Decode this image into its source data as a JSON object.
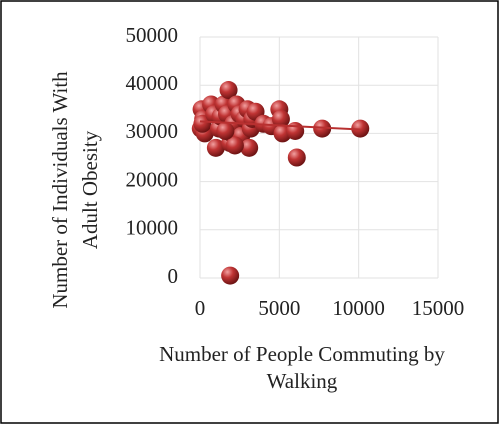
{
  "chart_data": {
    "type": "scatter",
    "x_label": [
      "Number of People Commuting by",
      "Walking"
    ],
    "y_label": [
      "Number of Individuals With",
      "Adult Obesity"
    ],
    "x": [
      100,
      200,
      50,
      300,
      150,
      700,
      900,
      1000,
      1200,
      1300,
      1500,
      1700,
      1800,
      1900,
      2000,
      2100,
      2300,
      2500,
      2600,
      2800,
      3000,
      3100,
      3200,
      3300,
      3500,
      2200,
      1600,
      4000,
      4500,
      5000,
      5100,
      5200,
      6000,
      6100,
      7700,
      10100,
      1900
    ],
    "y": [
      35000,
      33000,
      31000,
      30000,
      32000,
      36000,
      34000,
      27000,
      31000,
      33500,
      36000,
      34000,
      39000,
      28000,
      30000,
      32000,
      36000,
      34000,
      29500,
      33000,
      35000,
      27000,
      31000,
      33000,
      34500,
      27500,
      30500,
      32000,
      31500,
      35000,
      33000,
      30000,
      30500,
      25000,
      31000,
      31000,
      500
    ],
    "color": "#b83030",
    "trendline": {
      "x": [
        0,
        10100
      ],
      "y": [
        32500,
        30800
      ],
      "color": "#b83030"
    },
    "xlim": [
      0,
      15000
    ],
    "xticks": [
      0,
      5000,
      10000,
      15000
    ],
    "ylim": [
      0,
      50000
    ],
    "yticks": [
      0,
      10000,
      20000,
      30000,
      40000,
      50000
    ],
    "grid": true
  }
}
